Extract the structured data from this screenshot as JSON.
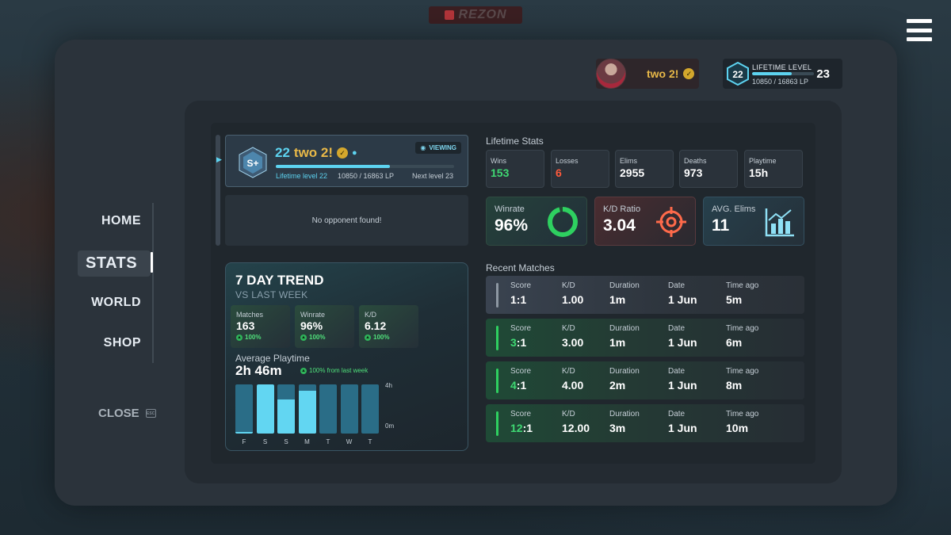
{
  "background": {
    "logo_text": "REZON"
  },
  "header": {
    "player_name": "two 2!",
    "level_title": "LIFETIME LEVEL",
    "level": "22",
    "lp": "10850 / 16863 LP",
    "next_level": "23",
    "level_progress": 0.64
  },
  "nav": {
    "items": [
      {
        "label": "HOME"
      },
      {
        "label": "STATS"
      },
      {
        "label": "WORLD"
      },
      {
        "label": "SHOP"
      }
    ],
    "active": "STATS",
    "close_label": "CLOSE",
    "close_key": "ESC"
  },
  "player_card": {
    "rank_badge": "S+",
    "level": "22",
    "name": "two 2!",
    "viewing_label": "VIEWING",
    "lifetime_level": "Lifetime level 22",
    "lp": "10850 / 16863 LP",
    "next_level": "Next level 23",
    "progress": 0.64
  },
  "opponent": {
    "text": "No opponent found!"
  },
  "trend": {
    "title": "7 DAY TREND",
    "subtitle": "VS LAST WEEK",
    "stats": [
      {
        "label": "Matches",
        "value": "163",
        "delta": "100%"
      },
      {
        "label": "Winrate",
        "value": "96%",
        "delta": "100%"
      },
      {
        "label": "K/D",
        "value": "6.12",
        "delta": "100%"
      }
    ],
    "playtime_label": "Average Playtime",
    "playtime_value": "2h 46m",
    "playtime_delta": "100% from last week",
    "y_top": "4h",
    "y_bottom": "0m"
  },
  "chart_data": {
    "type": "bar",
    "categories": [
      "F",
      "S",
      "S",
      "M",
      "T",
      "W",
      "T"
    ],
    "values": [
      0.1,
      4,
      2.8,
      3.5,
      0,
      0,
      0
    ],
    "ylim": [
      0,
      4
    ],
    "y_ticks": [
      "0m",
      "4h"
    ]
  },
  "lifetime_stats": {
    "title": "Lifetime Stats",
    "items": [
      {
        "label": "Wins",
        "value": "153",
        "color": "#3fd873"
      },
      {
        "label": "Losses",
        "value": "6",
        "color": "#ff5a3c"
      },
      {
        "label": "Elims",
        "value": "2955",
        "color": "#ffffff"
      },
      {
        "label": "Deaths",
        "value": "973",
        "color": "#ffffff"
      },
      {
        "label": "Playtime",
        "value": "15h",
        "color": "#ffffff"
      }
    ],
    "highlights": [
      {
        "label": "Winrate",
        "value": "96%",
        "icon": "ring-icon",
        "ratio": 0.96
      },
      {
        "label": "K/D Ratio",
        "value": "3.04",
        "icon": "crosshair-icon"
      },
      {
        "label": "AVG. Elims",
        "value": "11",
        "icon": "bar-chart-icon"
      }
    ]
  },
  "recent_matches": {
    "title": "Recent Matches",
    "columns": [
      "Score",
      "K/D",
      "Duration",
      "Date",
      "Time ago"
    ],
    "rows": [
      {
        "score_a": "1",
        "score_b": "1",
        "kd": "1.00",
        "duration": "1m",
        "date": "1 Jun",
        "ago": "5m",
        "result": "draw"
      },
      {
        "score_a": "3",
        "score_b": "1",
        "kd": "3.00",
        "duration": "1m",
        "date": "1 Jun",
        "ago": "6m",
        "result": "win"
      },
      {
        "score_a": "4",
        "score_b": "1",
        "kd": "4.00",
        "duration": "2m",
        "date": "1 Jun",
        "ago": "8m",
        "result": "win"
      },
      {
        "score_a": "12",
        "score_b": "1",
        "kd": "12.00",
        "duration": "3m",
        "date": "1 Jun",
        "ago": "10m",
        "result": "win"
      }
    ]
  },
  "colors": {
    "accent": "#5dd3f0",
    "gold": "#e8b848",
    "win": "#3fd873",
    "loss": "#ff5a3c"
  }
}
